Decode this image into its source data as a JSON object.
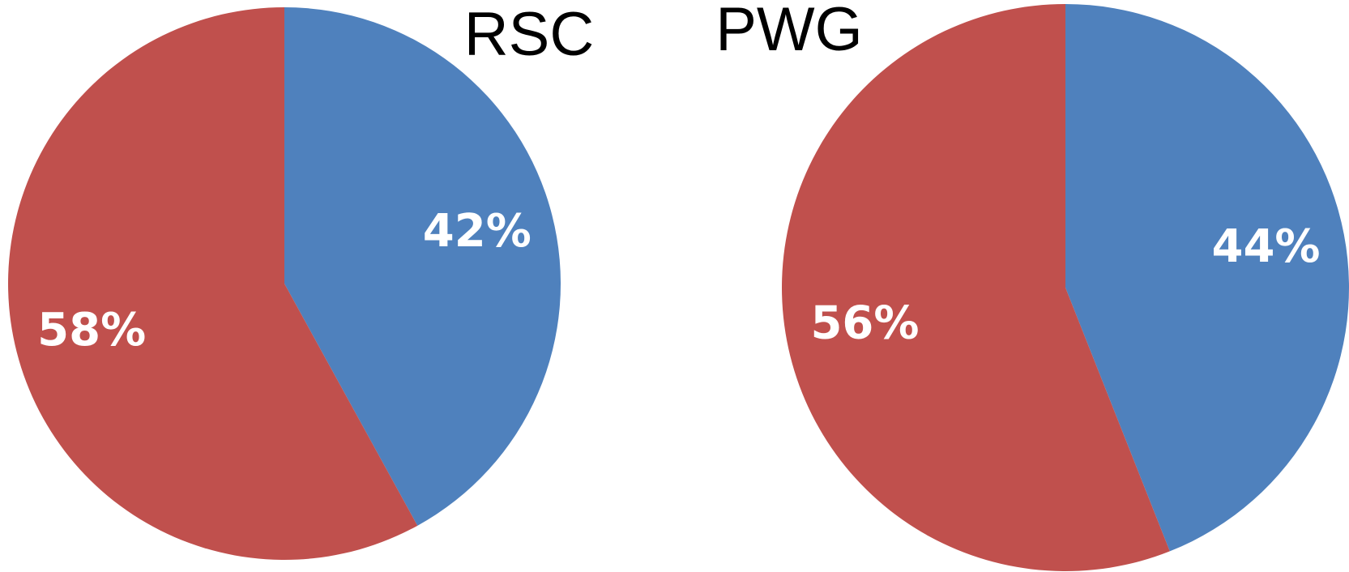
{
  "chart_data": [
    {
      "type": "pie",
      "title": "RSC",
      "values": [
        42,
        58
      ],
      "value_labels": [
        "42%",
        "58%"
      ],
      "colors": [
        "#4f81bd",
        "#c0504d"
      ]
    },
    {
      "type": "pie",
      "title": "PWG",
      "values": [
        44,
        56
      ],
      "value_labels": [
        "44%",
        "56%"
      ],
      "colors": [
        "#4f81bd",
        "#c0504d"
      ]
    }
  ]
}
